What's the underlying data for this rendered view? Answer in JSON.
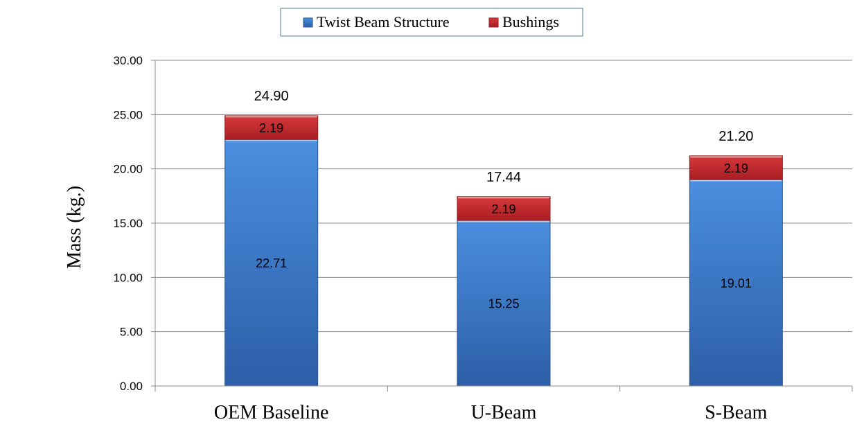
{
  "chart_data": {
    "type": "bar",
    "stacked": true,
    "categories": [
      "OEM Baseline",
      "U-Beam",
      "S-Beam"
    ],
    "series": [
      {
        "name": "Twist Beam Structure",
        "values": [
          22.71,
          15.25,
          19.01
        ],
        "labels": [
          "22.71",
          "15.25",
          "19.01"
        ],
        "color": "#3f7cc6"
      },
      {
        "name": "Bushings",
        "values": [
          2.19,
          2.19,
          2.19
        ],
        "labels": [
          "2.19",
          "2.19",
          "2.19"
        ],
        "color": "#c0262a"
      }
    ],
    "totals": [
      "24.90",
      "17.44",
      "21.20"
    ],
    "ylabel": "Mass (kg.)",
    "ylim": [
      0,
      30
    ],
    "yticks": [
      "0.00",
      "5.00",
      "10.00",
      "15.00",
      "20.00",
      "25.00",
      "30.00"
    ],
    "grid": true,
    "legend_position": "top"
  }
}
